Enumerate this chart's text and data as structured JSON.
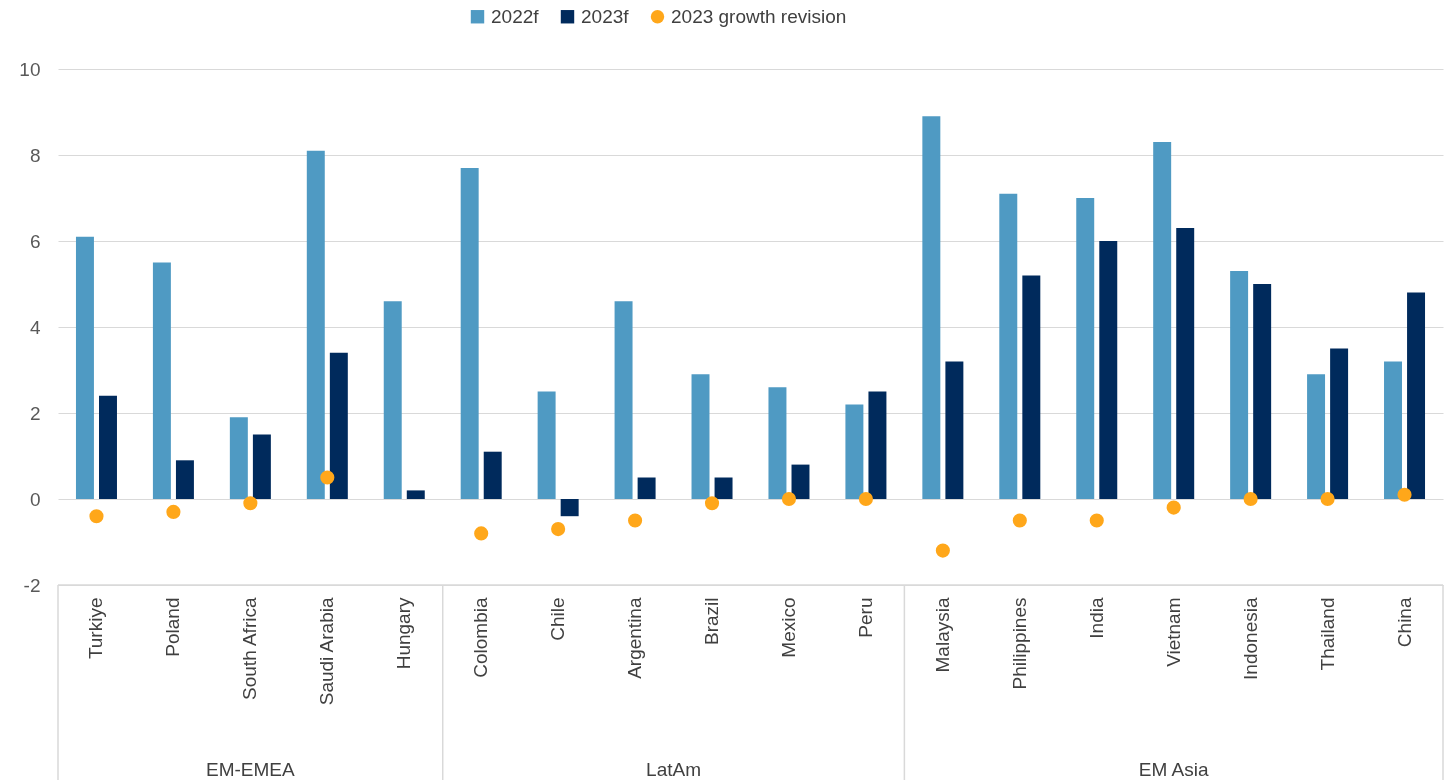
{
  "chart_data": {
    "type": "bar",
    "categories": [
      "Turkiye",
      "Poland",
      "South Africa",
      "Saudi Arabia",
      "Hungary",
      "Colombia",
      "Chile",
      "Argentina",
      "Brazil",
      "Mexico",
      "Peru",
      "Malaysia",
      "Philippines",
      "India",
      "Vietnam",
      "Indonesia",
      "Thailand",
      "China"
    ],
    "series": [
      {
        "name": "2022f",
        "color": "#4f9ac3",
        "values": [
          6.1,
          5.5,
          1.9,
          8.1,
          4.6,
          7.7,
          2.5,
          4.6,
          2.9,
          2.6,
          2.2,
          8.9,
          7.1,
          7.0,
          8.3,
          5.3,
          2.9,
          3.2
        ]
      },
      {
        "name": "2023f",
        "color": "#002a5c",
        "values": [
          2.4,
          0.9,
          1.5,
          3.4,
          0.2,
          1.1,
          -0.4,
          0.5,
          0.5,
          0.8,
          2.5,
          3.2,
          5.2,
          6.0,
          6.3,
          5.0,
          3.5,
          4.8
        ]
      },
      {
        "name": "2023 growth revision",
        "type": "scatter",
        "color": "#ffa71a",
        "values": [
          -0.4,
          -0.3,
          -0.1,
          0.5,
          null,
          -0.8,
          -0.7,
          -0.5,
          -0.1,
          0.0,
          0.0,
          -1.2,
          -0.5,
          -0.5,
          -0.2,
          0.0,
          0.0,
          0.1
        ]
      }
    ],
    "ylim": [
      -2,
      10
    ],
    "yticks": [
      -2,
      0,
      2,
      4,
      6,
      8,
      10
    ],
    "grid": "y",
    "legend": "top",
    "marker": "circle",
    "annotations": [
      "EM-EMEA",
      "LatAm",
      "EM Asia"
    ]
  }
}
